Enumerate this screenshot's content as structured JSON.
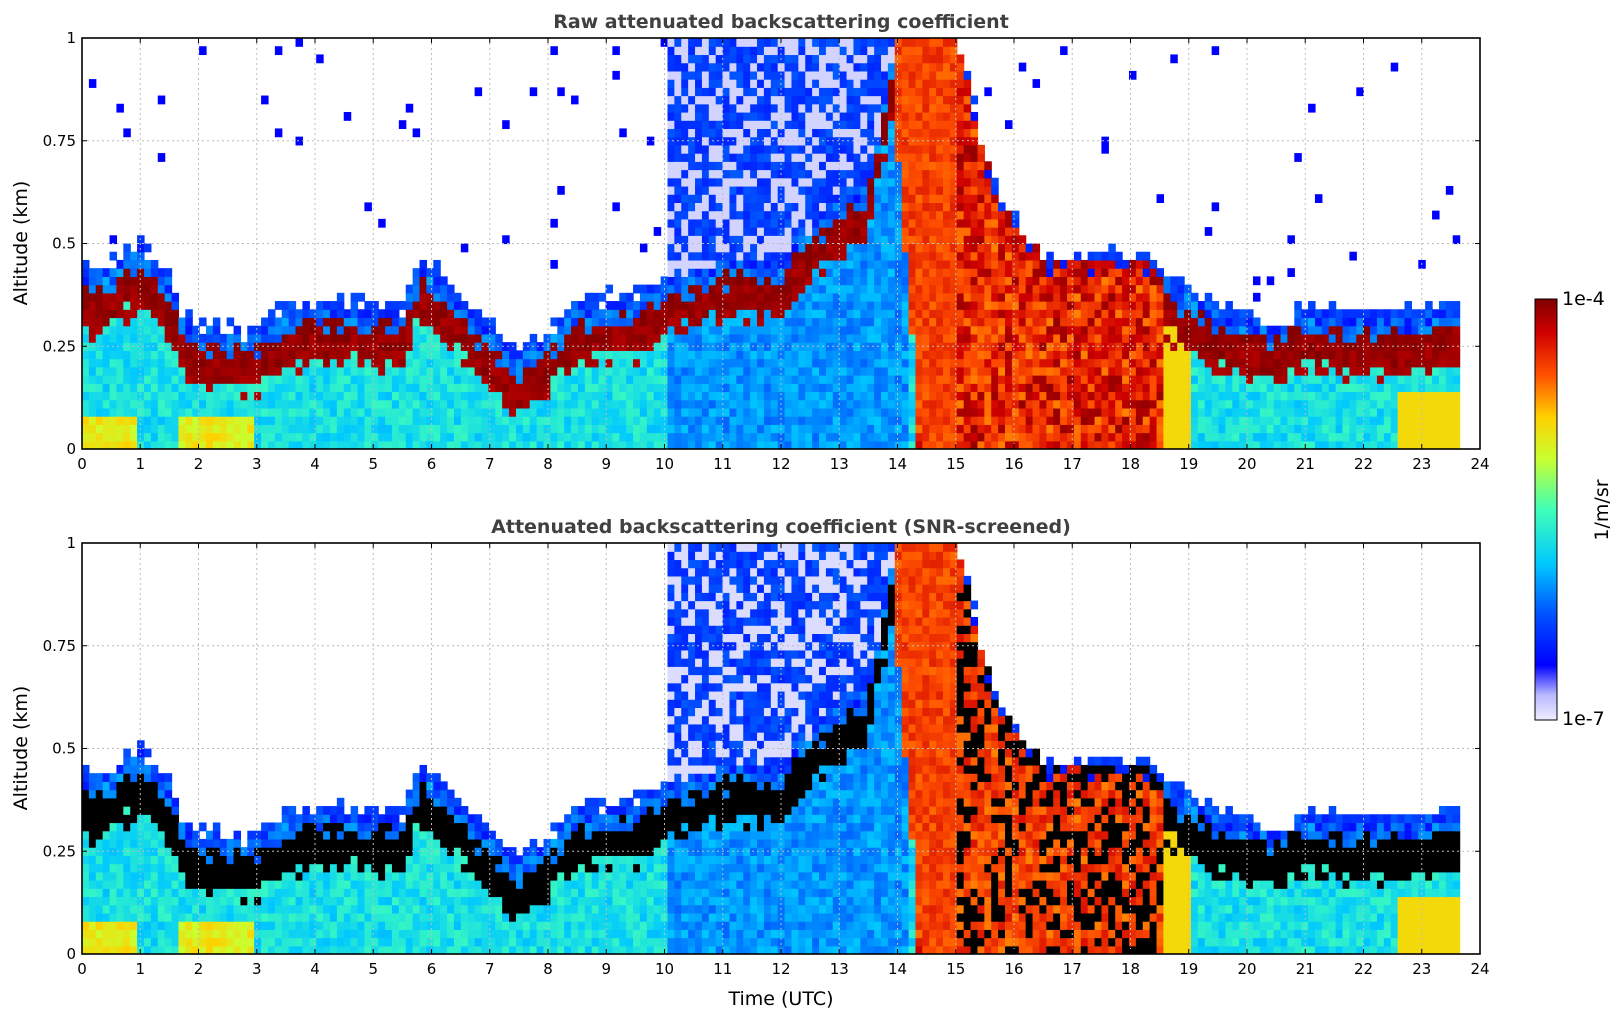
{
  "chart_data": [
    {
      "type": "heatmap",
      "title": "Raw attenuated backscattering coefficient",
      "xlabel": "",
      "ylabel": "Altitude (km)",
      "xlim": [
        0,
        24
      ],
      "ylim": [
        0,
        1
      ],
      "xticks": [
        "0",
        "1",
        "2",
        "3",
        "4",
        "5",
        "6",
        "7",
        "8",
        "9",
        "10",
        "11",
        "12",
        "13",
        "14",
        "15",
        "16",
        "17",
        "18",
        "19",
        "20",
        "21",
        "22",
        "23",
        "24"
      ],
      "yticks": [
        "0",
        "0.25",
        "0.5",
        "0.75",
        "1"
      ],
      "grid": true,
      "data_end_hour": 23.65,
      "layer_top_km": [
        [
          0.0,
          0.42
        ],
        [
          0.5,
          0.43
        ],
        [
          1.0,
          0.49
        ],
        [
          1.5,
          0.4
        ],
        [
          1.8,
          0.3
        ],
        [
          2.5,
          0.28
        ],
        [
          3.0,
          0.27
        ],
        [
          3.6,
          0.34
        ],
        [
          4.5,
          0.34
        ],
        [
          5.5,
          0.33
        ],
        [
          5.8,
          0.45
        ],
        [
          6.2,
          0.4
        ],
        [
          7.0,
          0.28
        ],
        [
          7.5,
          0.22
        ],
        [
          8.0,
          0.27
        ],
        [
          8.5,
          0.34
        ],
        [
          9.5,
          0.36
        ],
        [
          10.0,
          0.41
        ],
        [
          11.0,
          0.45
        ],
        [
          12.0,
          0.46
        ],
        [
          12.8,
          0.58
        ],
        [
          13.5,
          0.65
        ],
        [
          14.0,
          1.0
        ],
        [
          15.0,
          1.0
        ],
        [
          15.7,
          0.6
        ],
        [
          16.5,
          0.45
        ],
        [
          17.5,
          0.45
        ],
        [
          18.2,
          0.45
        ],
        [
          18.5,
          0.42
        ],
        [
          19.5,
          0.33
        ],
        [
          20.5,
          0.29
        ],
        [
          21.0,
          0.33
        ],
        [
          22.0,
          0.32
        ],
        [
          23.0,
          0.31
        ],
        [
          23.6,
          0.35
        ]
      ],
      "colorbar": {
        "label": "1/m/sr",
        "min_label": "1e-7",
        "max_label": "1e-4",
        "scale": "log"
      }
    },
    {
      "type": "heatmap",
      "title": "Attenuated backscattering coefficient (SNR-screened)",
      "xlabel": "Time (UTC)",
      "ylabel": "Altitude (km)",
      "xlim": [
        0,
        24
      ],
      "ylim": [
        0,
        1
      ],
      "xticks": [
        "0",
        "1",
        "2",
        "3",
        "4",
        "5",
        "6",
        "7",
        "8",
        "9",
        "10",
        "11",
        "12",
        "13",
        "14",
        "15",
        "16",
        "17",
        "18",
        "19",
        "20",
        "21",
        "22",
        "23",
        "24"
      ],
      "yticks": [
        "0",
        "0.25",
        "0.5",
        "0.75",
        "1"
      ],
      "grid": true,
      "data_end_hour": 23.65,
      "screening": "values above threshold shown in black"
    }
  ]
}
